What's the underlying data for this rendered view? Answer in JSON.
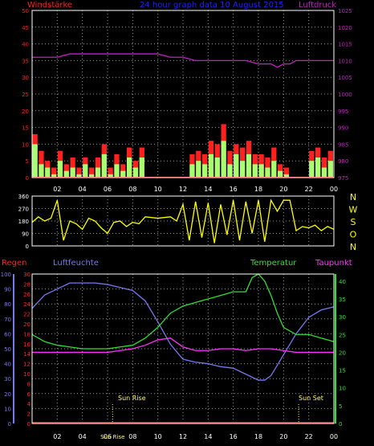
{
  "header": {
    "left_label": "Windstärke",
    "title": "24 hour graph data  10 August 2015",
    "right_label": "Luftdruck"
  },
  "colors": {
    "bg": "#000000",
    "grid": "#9a9a9a",
    "frame": "#ffffff",
    "wind_red": "#ff2020",
    "wind_green": "#a8ff70",
    "pressure": "#c020c0",
    "direction": "#ffff00",
    "temperature": "#30e030",
    "humidity": "#7878f0",
    "dewpoint": "#ff30ff",
    "rain": "#ff2020",
    "title_blue": "#2020ff",
    "sun_label": "#ffff60",
    "axis_tick_white": "#ffffff"
  },
  "time_axis": {
    "ticks": [
      "02",
      "04",
      "06",
      "08",
      "10",
      "12",
      "14",
      "16",
      "18",
      "20",
      "22",
      "00"
    ],
    "tick_hours": [
      2,
      4,
      6,
      8,
      10,
      12,
      14,
      16,
      18,
      20,
      22,
      24
    ]
  },
  "top_chart": {
    "y_left_ticks": [
      0,
      5,
      10,
      15,
      20,
      25,
      30,
      35,
      40,
      45,
      50
    ],
    "y_right_ticks": [
      975,
      980,
      985,
      990,
      995,
      1000,
      1005,
      1010,
      1015,
      1020,
      1025
    ],
    "ylim_left": [
      0,
      50
    ],
    "ylim_right": [
      975,
      1025
    ]
  },
  "dir_chart": {
    "y_ticks": [
      0,
      90,
      180,
      270,
      360
    ],
    "ylim": [
      0,
      360
    ],
    "compass_labels": [
      "N",
      "W",
      "S",
      "O",
      "N"
    ]
  },
  "bottom_chart": {
    "legend": {
      "rain": "Regen",
      "humidity": "Luftfeuchte",
      "temperature": "Temperatur",
      "dewpoint": "Taupunkt"
    },
    "y_hum_ticks": [
      0,
      10,
      20,
      30,
      40,
      50,
      60,
      70,
      80,
      90,
      100
    ],
    "y_rain_ticks": [
      0,
      2,
      4,
      6,
      8,
      10,
      12,
      14,
      16,
      18,
      20,
      22,
      24,
      26,
      28,
      30
    ],
    "y_temp_ticks": [
      0,
      5,
      10,
      15,
      20,
      25,
      30,
      35,
      40
    ],
    "ylim_hum": [
      0,
      100
    ],
    "ylim_rain": [
      0,
      30
    ],
    "ylim_temp": [
      0,
      42
    ],
    "sunrise_label": "Sun Rise",
    "sunset_label": "Sun Set",
    "sunrise_tick_label": "Sun Rise"
  },
  "chart_data": [
    {
      "type": "bar",
      "name": "wind",
      "x_unit": "hour",
      "x": [
        0.0,
        0.5,
        1.0,
        1.5,
        2.0,
        2.5,
        3.0,
        3.5,
        4.0,
        4.5,
        5.0,
        5.5,
        6.0,
        6.5,
        7.0,
        7.5,
        8.0,
        8.5,
        9.0,
        9.5,
        10.0,
        10.5,
        11.0,
        11.5,
        12.0,
        12.5,
        13.0,
        13.5,
        14.0,
        14.5,
        15.0,
        15.5,
        16.0,
        16.5,
        17.0,
        17.5,
        18.0,
        18.5,
        19.0,
        19.5,
        20.0,
        20.5,
        21.0,
        21.5,
        22.0,
        22.5,
        23.0,
        23.5
      ],
      "series": [
        {
          "name": "Windböen",
          "values": [
            13,
            8,
            5,
            3,
            8,
            4,
            6,
            3,
            6,
            3,
            6,
            10,
            3,
            7,
            4,
            9,
            5,
            9,
            0,
            0,
            0,
            0,
            0,
            0,
            0,
            7,
            8,
            7,
            11,
            10,
            16,
            8,
            10,
            9,
            11,
            7,
            7,
            6,
            9,
            4,
            3,
            0,
            0,
            0,
            8,
            9,
            6,
            8
          ]
        },
        {
          "name": "Windstärke",
          "values": [
            10,
            4,
            3,
            1,
            5,
            2,
            3,
            1,
            4,
            1,
            3,
            7,
            1,
            4,
            2,
            6,
            3,
            6,
            0,
            0,
            0,
            0,
            0,
            0,
            0,
            4,
            5,
            4,
            7,
            6,
            11,
            4,
            7,
            5,
            7,
            4,
            4,
            3,
            5,
            2,
            1,
            0,
            0,
            0,
            5,
            6,
            3,
            5
          ]
        }
      ],
      "ylim": [
        0,
        50
      ]
    },
    {
      "type": "line",
      "name": "pressure",
      "x": [
        0,
        1,
        2,
        3,
        4,
        5,
        6,
        7,
        8,
        9,
        10,
        11,
        12,
        13,
        14,
        15,
        16,
        17,
        18,
        19,
        19.5,
        20,
        20.5,
        21,
        22,
        23,
        24
      ],
      "values": [
        1011,
        1011,
        1011,
        1012,
        1012,
        1012,
        1012,
        1012,
        1012,
        1012,
        1012,
        1011,
        1011,
        1010,
        1010,
        1010,
        1010,
        1010,
        1009,
        1009,
        1008,
        1009,
        1009,
        1010,
        1010,
        1010,
        1010
      ],
      "ylim": [
        975,
        1025
      ]
    },
    {
      "type": "line",
      "name": "direction",
      "x": [
        0,
        0.5,
        1,
        1.5,
        2,
        2.5,
        3,
        3.5,
        4,
        4.5,
        5,
        5.5,
        6,
        6.5,
        7,
        7.5,
        8,
        8.5,
        9,
        10,
        11,
        11.5,
        12,
        12.5,
        13,
        13.5,
        14,
        14.5,
        15,
        15.5,
        16,
        16.5,
        17,
        17.5,
        18,
        18.5,
        19,
        19.5,
        20,
        20.5,
        21,
        21.5,
        22,
        22.5,
        23,
        23.5,
        24
      ],
      "values": [
        170,
        210,
        180,
        200,
        330,
        40,
        180,
        160,
        120,
        200,
        180,
        130,
        90,
        170,
        180,
        140,
        170,
        160,
        210,
        200,
        210,
        180,
        300,
        40,
        320,
        60,
        310,
        20,
        300,
        80,
        330,
        40,
        320,
        90,
        330,
        30,
        330,
        250,
        330,
        330,
        110,
        140,
        130,
        150,
        110,
        140,
        120
      ],
      "ylim": [
        0,
        360
      ]
    },
    {
      "type": "line",
      "name": "humidity",
      "x": [
        0,
        1,
        2,
        3,
        4,
        5,
        6,
        7,
        8,
        9,
        10,
        11,
        12,
        13,
        14,
        15,
        16,
        17,
        18,
        18.5,
        19,
        20,
        21,
        22,
        23,
        24
      ],
      "values": [
        77,
        86,
        90,
        94,
        94,
        94,
        93,
        91,
        89,
        82,
        68,
        53,
        43,
        41,
        40,
        38,
        37,
        33,
        29,
        29,
        32,
        46,
        60,
        71,
        76,
        78
      ],
      "ylim": [
        0,
        100
      ]
    },
    {
      "type": "line",
      "name": "temperature",
      "x": [
        0,
        1,
        2,
        3,
        4,
        5,
        6,
        7,
        8,
        9,
        10,
        11,
        12,
        13,
        14,
        15,
        16,
        17,
        17.5,
        18,
        18.5,
        19,
        19.5,
        20,
        21,
        22,
        23,
        24
      ],
      "values": [
        25,
        23,
        22,
        21.5,
        21,
        21,
        21,
        21.5,
        22,
        24,
        27,
        31,
        33,
        34,
        35,
        36,
        37,
        37,
        41,
        42,
        40,
        36,
        31,
        27,
        25,
        25,
        24,
        23
      ],
      "ylim": [
        0,
        42
      ]
    },
    {
      "type": "line",
      "name": "dewpoint",
      "x": [
        0,
        1,
        2,
        3,
        4,
        5,
        6,
        7,
        8,
        9,
        10,
        11,
        12,
        13,
        14,
        15,
        16,
        17,
        18,
        19,
        20,
        21,
        22,
        23,
        24
      ],
      "values": [
        20,
        20,
        20,
        20,
        20,
        20,
        20,
        20.5,
        21,
        22,
        23.5,
        24,
        21.5,
        20.5,
        20.5,
        21,
        21,
        20.5,
        21,
        21,
        20.5,
        20,
        20,
        20,
        20
      ],
      "ylim": [
        0,
        42
      ]
    },
    {
      "type": "line",
      "name": "rain",
      "x": [
        0,
        24
      ],
      "values": [
        0,
        0
      ],
      "ylim": [
        0,
        30
      ]
    }
  ]
}
